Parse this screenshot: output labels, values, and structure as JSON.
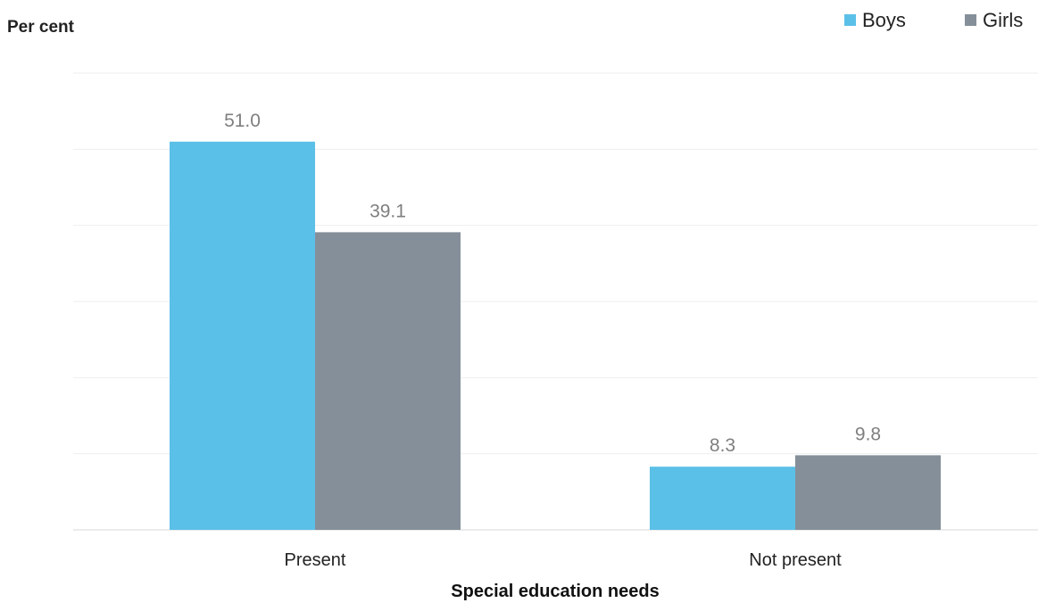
{
  "chart_data": {
    "type": "bar",
    "ylabel": "Per cent",
    "xlabel": "Special education needs",
    "categories": [
      "Present",
      "Not present"
    ],
    "series": [
      {
        "name": "Boys",
        "values": [
          51.0,
          8.3
        ],
        "color": "#5bc0e8"
      },
      {
        "name": "Girls",
        "values": [
          39.1,
          9.8
        ],
        "color": "#858f99"
      }
    ],
    "ylim": [
      0,
      60
    ],
    "grid": true,
    "legend": "top-right",
    "value_labels": [
      [
        "51.0",
        "8.3"
      ],
      [
        "39.1",
        "9.8"
      ]
    ]
  }
}
